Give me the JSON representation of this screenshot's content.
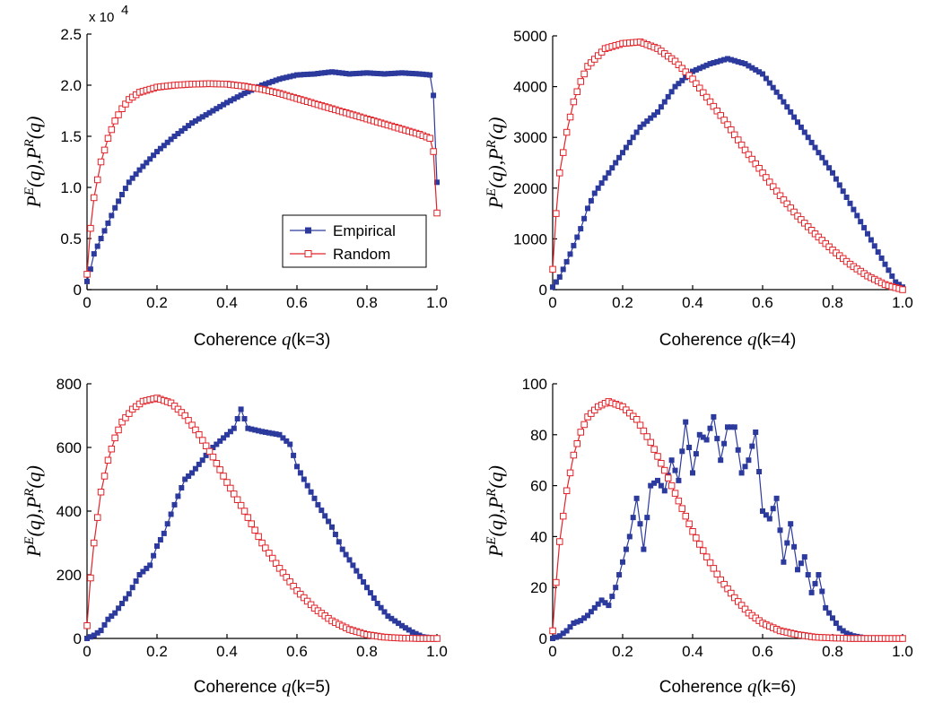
{
  "colors": {
    "empirical": "#2b3a9c",
    "random": "#e0242a"
  },
  "chart_data": [
    {
      "type": "line",
      "xlabel_text": "Coherence ",
      "xlabel_var": "q",
      "xlabel_k": "(k=3)",
      "ylabel": "P^E(q),P^R(q)",
      "xlim": [
        0,
        1
      ],
      "ylim": [
        0,
        25000
      ],
      "x_ticks": [
        "0",
        "0.2",
        "0.4",
        "0.6",
        "0.8",
        "1.0"
      ],
      "y_ticks": [
        "0",
        "0.5",
        "1.0",
        "1.5",
        "2.0",
        "2.5"
      ],
      "y_multiplier": "x 10",
      "y_multiplier_exp": "4",
      "legend": {
        "position": "lower-right",
        "entries": [
          "Empirical",
          "Random"
        ]
      },
      "series": [
        {
          "name": "Empirical",
          "marker": "filled-square",
          "points": [
            [
              0,
              800
            ],
            [
              0.01,
              2000
            ],
            [
              0.02,
              3500
            ],
            [
              0.04,
              5000
            ],
            [
              0.06,
              6500
            ],
            [
              0.08,
              8000
            ],
            [
              0.1,
              9300
            ],
            [
              0.12,
              10500
            ],
            [
              0.15,
              11700
            ],
            [
              0.2,
              13500
            ],
            [
              0.25,
              15000
            ],
            [
              0.3,
              16300
            ],
            [
              0.35,
              17300
            ],
            [
              0.4,
              18300
            ],
            [
              0.45,
              19200
            ],
            [
              0.5,
              20000
            ],
            [
              0.55,
              20600
            ],
            [
              0.6,
              21000
            ],
            [
              0.65,
              21100
            ],
            [
              0.7,
              21300
            ],
            [
              0.75,
              21100
            ],
            [
              0.8,
              21200
            ],
            [
              0.85,
              21100
            ],
            [
              0.9,
              21200
            ],
            [
              0.95,
              21100
            ],
            [
              0.98,
              21000
            ],
            [
              0.99,
              19000
            ],
            [
              1.0,
              10500
            ]
          ]
        },
        {
          "name": "Random",
          "marker": "open-square",
          "points": [
            [
              0,
              1500
            ],
            [
              0.01,
              6000
            ],
            [
              0.02,
              9000
            ],
            [
              0.04,
              12500
            ],
            [
              0.06,
              14800
            ],
            [
              0.08,
              16500
            ],
            [
              0.1,
              17700
            ],
            [
              0.12,
              18600
            ],
            [
              0.15,
              19300
            ],
            [
              0.2,
              19800
            ],
            [
              0.25,
              20000
            ],
            [
              0.3,
              20100
            ],
            [
              0.35,
              20150
            ],
            [
              0.4,
              20100
            ],
            [
              0.45,
              19900
            ],
            [
              0.5,
              19600
            ],
            [
              0.55,
              19200
            ],
            [
              0.6,
              18700
            ],
            [
              0.65,
              18200
            ],
            [
              0.7,
              17700
            ],
            [
              0.75,
              17200
            ],
            [
              0.8,
              16700
            ],
            [
              0.85,
              16200
            ],
            [
              0.9,
              15700
            ],
            [
              0.95,
              15200
            ],
            [
              0.98,
              14800
            ],
            [
              0.99,
              13500
            ],
            [
              1.0,
              7500
            ]
          ]
        }
      ]
    },
    {
      "type": "line",
      "xlabel_text": "Coherence ",
      "xlabel_var": "q",
      "xlabel_k": "(k=4)",
      "ylabel": "P^E(q),P^R(q)",
      "xlim": [
        0,
        1
      ],
      "ylim": [
        0,
        5000
      ],
      "x_ticks": [
        "0",
        "0.2",
        "0.4",
        "0.6",
        "0.8",
        "1.0"
      ],
      "y_ticks": [
        "0",
        "1000",
        "2000",
        "3000",
        "4000",
        "5000"
      ],
      "series": [
        {
          "name": "Empirical",
          "marker": "filled-square",
          "points": [
            [
              0,
              50
            ],
            [
              0.02,
              250
            ],
            [
              0.05,
              700
            ],
            [
              0.08,
              1200
            ],
            [
              0.1,
              1600
            ],
            [
              0.12,
              1900
            ],
            [
              0.15,
              2200
            ],
            [
              0.2,
              2700
            ],
            [
              0.25,
              3200
            ],
            [
              0.3,
              3500
            ],
            [
              0.35,
              4000
            ],
            [
              0.4,
              4300
            ],
            [
              0.45,
              4450
            ],
            [
              0.5,
              4550
            ],
            [
              0.55,
              4450
            ],
            [
              0.6,
              4250
            ],
            [
              0.65,
              3800
            ],
            [
              0.7,
              3300
            ],
            [
              0.75,
              2800
            ],
            [
              0.8,
              2300
            ],
            [
              0.85,
              1700
            ],
            [
              0.9,
              1100
            ],
            [
              0.95,
              500
            ],
            [
              0.98,
              150
            ],
            [
              1.0,
              50
            ]
          ]
        },
        {
          "name": "Random",
          "marker": "open-square",
          "points": [
            [
              0,
              400
            ],
            [
              0.01,
              1500
            ],
            [
              0.02,
              2300
            ],
            [
              0.04,
              3100
            ],
            [
              0.06,
              3700
            ],
            [
              0.08,
              4100
            ],
            [
              0.1,
              4400
            ],
            [
              0.15,
              4750
            ],
            [
              0.2,
              4850
            ],
            [
              0.25,
              4880
            ],
            [
              0.3,
              4750
            ],
            [
              0.35,
              4500
            ],
            [
              0.4,
              4150
            ],
            [
              0.45,
              3700
            ],
            [
              0.5,
              3250
            ],
            [
              0.55,
              2750
            ],
            [
              0.6,
              2300
            ],
            [
              0.65,
              1850
            ],
            [
              0.7,
              1450
            ],
            [
              0.75,
              1100
            ],
            [
              0.8,
              780
            ],
            [
              0.85,
              500
            ],
            [
              0.9,
              270
            ],
            [
              0.95,
              100
            ],
            [
              1.0,
              0
            ]
          ]
        }
      ]
    },
    {
      "type": "line",
      "xlabel_text": "Coherence ",
      "xlabel_var": "q",
      "xlabel_k": "(k=5)",
      "ylabel": "P^E(q),P^R(q)",
      "xlim": [
        0,
        1
      ],
      "ylim": [
        0,
        800
      ],
      "x_ticks": [
        "0",
        "0.2",
        "0.4",
        "0.6",
        "0.8",
        "1.0"
      ],
      "y_ticks": [
        "0",
        "200",
        "400",
        "600",
        "800"
      ],
      "series": [
        {
          "name": "Empirical",
          "marker": "filled-square",
          "points": [
            [
              0,
              0
            ],
            [
              0.02,
              10
            ],
            [
              0.04,
              25
            ],
            [
              0.06,
              60
            ],
            [
              0.08,
              80
            ],
            [
              0.1,
              110
            ],
            [
              0.12,
              140
            ],
            [
              0.15,
              200
            ],
            [
              0.18,
              230
            ],
            [
              0.2,
              290
            ],
            [
              0.22,
              330
            ],
            [
              0.25,
              420
            ],
            [
              0.28,
              500
            ],
            [
              0.3,
              520
            ],
            [
              0.33,
              560
            ],
            [
              0.35,
              590
            ],
            [
              0.38,
              620
            ],
            [
              0.4,
              640
            ],
            [
              0.42,
              660
            ],
            [
              0.44,
              720
            ],
            [
              0.46,
              660
            ],
            [
              0.5,
              650
            ],
            [
              0.55,
              640
            ],
            [
              0.58,
              610
            ],
            [
              0.6,
              540
            ],
            [
              0.63,
              480
            ],
            [
              0.66,
              420
            ],
            [
              0.7,
              350
            ],
            [
              0.73,
              280
            ],
            [
              0.76,
              230
            ],
            [
              0.8,
              160
            ],
            [
              0.83,
              110
            ],
            [
              0.86,
              70
            ],
            [
              0.9,
              40
            ],
            [
              0.93,
              20
            ],
            [
              0.96,
              5
            ],
            [
              1.0,
              0
            ]
          ]
        },
        {
          "name": "Random",
          "marker": "open-square",
          "points": [
            [
              0,
              40
            ],
            [
              0.01,
              190
            ],
            [
              0.02,
              300
            ],
            [
              0.04,
              460
            ],
            [
              0.06,
              560
            ],
            [
              0.08,
              630
            ],
            [
              0.1,
              680
            ],
            [
              0.13,
              720
            ],
            [
              0.16,
              745
            ],
            [
              0.2,
              755
            ],
            [
              0.24,
              740
            ],
            [
              0.28,
              700
            ],
            [
              0.32,
              640
            ],
            [
              0.36,
              570
            ],
            [
              0.4,
              490
            ],
            [
              0.45,
              400
            ],
            [
              0.5,
              300
            ],
            [
              0.55,
              220
            ],
            [
              0.6,
              150
            ],
            [
              0.65,
              95
            ],
            [
              0.7,
              55
            ],
            [
              0.75,
              28
            ],
            [
              0.8,
              12
            ],
            [
              0.85,
              4
            ],
            [
              0.9,
              1
            ],
            [
              0.95,
              0
            ],
            [
              1.0,
              0
            ]
          ]
        }
      ]
    },
    {
      "type": "line",
      "xlabel_text": "Coherence ",
      "xlabel_var": "q",
      "xlabel_k": "(k=6)",
      "ylabel": "P^E(q),P^R(q)",
      "xlim": [
        0,
        1
      ],
      "ylim": [
        0,
        100
      ],
      "x_ticks": [
        "0",
        "0.2",
        "0.4",
        "0.6",
        "0.8",
        "1.0"
      ],
      "y_ticks": [
        "0",
        "20",
        "40",
        "60",
        "80",
        "100"
      ],
      "series": [
        {
          "name": "Empirical",
          "marker": "filled-square",
          "points": [
            [
              0,
              0
            ],
            [
              0.02,
              1
            ],
            [
              0.04,
              3
            ],
            [
              0.06,
              6
            ],
            [
              0.08,
              7
            ],
            [
              0.1,
              9
            ],
            [
              0.12,
              12
            ],
            [
              0.14,
              15
            ],
            [
              0.16,
              13
            ],
            [
              0.18,
              20
            ],
            [
              0.2,
              30
            ],
            [
              0.22,
              40
            ],
            [
              0.24,
              55
            ],
            [
              0.26,
              35
            ],
            [
              0.28,
              60
            ],
            [
              0.3,
              62
            ],
            [
              0.32,
              58
            ],
            [
              0.34,
              70
            ],
            [
              0.36,
              62
            ],
            [
              0.38,
              85
            ],
            [
              0.4,
              65
            ],
            [
              0.42,
              80
            ],
            [
              0.44,
              78
            ],
            [
              0.46,
              87
            ],
            [
              0.48,
              70
            ],
            [
              0.5,
              83
            ],
            [
              0.52,
              83
            ],
            [
              0.54,
              65
            ],
            [
              0.56,
              70
            ],
            [
              0.58,
              81
            ],
            [
              0.6,
              50
            ],
            [
              0.62,
              47
            ],
            [
              0.64,
              55
            ],
            [
              0.66,
              30
            ],
            [
              0.68,
              45
            ],
            [
              0.7,
              27
            ],
            [
              0.72,
              32
            ],
            [
              0.74,
              18
            ],
            [
              0.76,
              25
            ],
            [
              0.78,
              12
            ],
            [
              0.8,
              8
            ],
            [
              0.82,
              4
            ],
            [
              0.84,
              2
            ],
            [
              0.86,
              1
            ],
            [
              0.9,
              0
            ],
            [
              1.0,
              0
            ]
          ]
        },
        {
          "name": "Random",
          "marker": "open-square",
          "points": [
            [
              0,
              3
            ],
            [
              0.01,
              22
            ],
            [
              0.02,
              38
            ],
            [
              0.04,
              58
            ],
            [
              0.06,
              72
            ],
            [
              0.08,
              81
            ],
            [
              0.1,
              87
            ],
            [
              0.13,
              91
            ],
            [
              0.16,
              93
            ],
            [
              0.2,
              91
            ],
            [
              0.24,
              86
            ],
            [
              0.28,
              77
            ],
            [
              0.32,
              66
            ],
            [
              0.36,
              54
            ],
            [
              0.4,
              42
            ],
            [
              0.44,
              32
            ],
            [
              0.48,
              23
            ],
            [
              0.52,
              16
            ],
            [
              0.56,
              10
            ],
            [
              0.6,
              6
            ],
            [
              0.65,
              3
            ],
            [
              0.7,
              1.5
            ],
            [
              0.75,
              0.5
            ],
            [
              0.8,
              0.2
            ],
            [
              0.85,
              0
            ],
            [
              0.9,
              0
            ],
            [
              1.0,
              0
            ]
          ]
        }
      ]
    }
  ]
}
